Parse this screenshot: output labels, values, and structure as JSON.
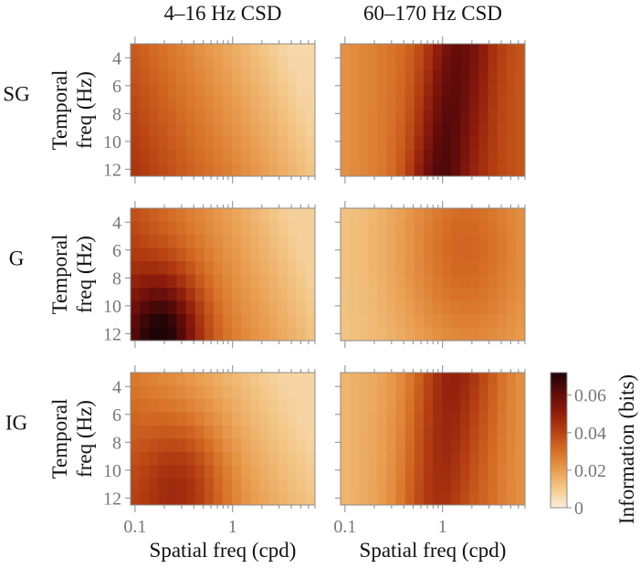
{
  "chart_data": {
    "type": "heatmap",
    "column_titles": [
      "4–16 Hz  CSD",
      "60–170 Hz  CSD"
    ],
    "row_labels": [
      "SG",
      "G",
      "IG"
    ],
    "ylabel_lines": [
      "Temporal",
      "freq (Hz)"
    ],
    "xlabel": "Spatial freq (cpd)",
    "x_scale": "log",
    "x_range": [
      0.09,
      7
    ],
    "x_tick_labels": [
      "0.1",
      "1"
    ],
    "x_ticks": [
      0.1,
      1
    ],
    "y_range": [
      3,
      12.5
    ],
    "y_ticks": [
      4,
      6,
      8,
      10,
      12
    ],
    "y_tick_labels": [
      "4",
      "6",
      "8",
      "10",
      "12"
    ],
    "grid_columns": 20,
    "grid_rows": 10,
    "colorbar": {
      "label": "Information (bits)",
      "range": [
        0,
        0.072
      ],
      "ticks": [
        0,
        0.02,
        0.04,
        0.06
      ],
      "tick_labels": [
        "0",
        "0.02",
        "0.04",
        "0.06"
      ],
      "colors": [
        "#fbeedc",
        "#f3c889",
        "#e89a4c",
        "#d46c24",
        "#b53f12",
        "#8c1b0c",
        "#5c0a0a",
        "#1e0406"
      ]
    },
    "panels": [
      {
        "row": "SG",
        "column": "4–16 Hz  CSD",
        "description_peak": {
          "spatial_cpd": 0.12,
          "temporal_hz": 6,
          "value": 0.042
        },
        "spatial_cpd": [
          0.1,
          0.2,
          0.5,
          1,
          2,
          5
        ],
        "information_at_8hz": [
          0.041,
          0.039,
          0.031,
          0.022,
          0.012,
          0.006
        ]
      },
      {
        "row": "SG",
        "column": "60–170 Hz  CSD",
        "description_peak": {
          "spatial_cpd": 1.6,
          "temporal_hz": 8,
          "value": 0.056
        },
        "spatial_cpd": [
          0.1,
          0.2,
          0.5,
          1,
          2,
          5
        ],
        "information_at_8hz": [
          0.025,
          0.031,
          0.04,
          0.05,
          0.054,
          0.036
        ]
      },
      {
        "row": "G",
        "column": "4–16 Hz  CSD",
        "description_peak": {
          "spatial_cpd": 0.25,
          "temporal_hz": 11.5,
          "value": 0.071
        },
        "spatial_cpd": [
          0.1,
          0.2,
          0.5,
          1,
          2,
          5
        ],
        "information_at_8hz": [
          0.054,
          0.056,
          0.038,
          0.025,
          0.016,
          0.009
        ]
      },
      {
        "row": "G",
        "column": "60–170 Hz  CSD",
        "description_peak": {
          "spatial_cpd": 1.8,
          "temporal_hz": 6,
          "value": 0.032
        },
        "spatial_cpd": [
          0.1,
          0.2,
          0.5,
          1,
          2,
          5
        ],
        "information_at_8hz": [
          0.013,
          0.018,
          0.022,
          0.027,
          0.031,
          0.026
        ]
      },
      {
        "row": "IG",
        "column": "4–16 Hz  CSD",
        "description_peak": {
          "spatial_cpd": 0.28,
          "temporal_hz": 10.5,
          "value": 0.052
        },
        "spatial_cpd": [
          0.1,
          0.2,
          0.5,
          1,
          2,
          5
        ],
        "information_at_8hz": [
          0.04,
          0.043,
          0.037,
          0.027,
          0.017,
          0.009
        ]
      },
      {
        "row": "IG",
        "column": "60–170 Hz  CSD",
        "description_peak": {
          "spatial_cpd": 1.7,
          "temporal_hz": 6,
          "value": 0.053
        },
        "spatial_cpd": [
          0.1,
          0.2,
          0.5,
          1,
          2,
          5
        ],
        "information_at_8hz": [
          0.018,
          0.024,
          0.034,
          0.044,
          0.048,
          0.03
        ]
      }
    ]
  }
}
